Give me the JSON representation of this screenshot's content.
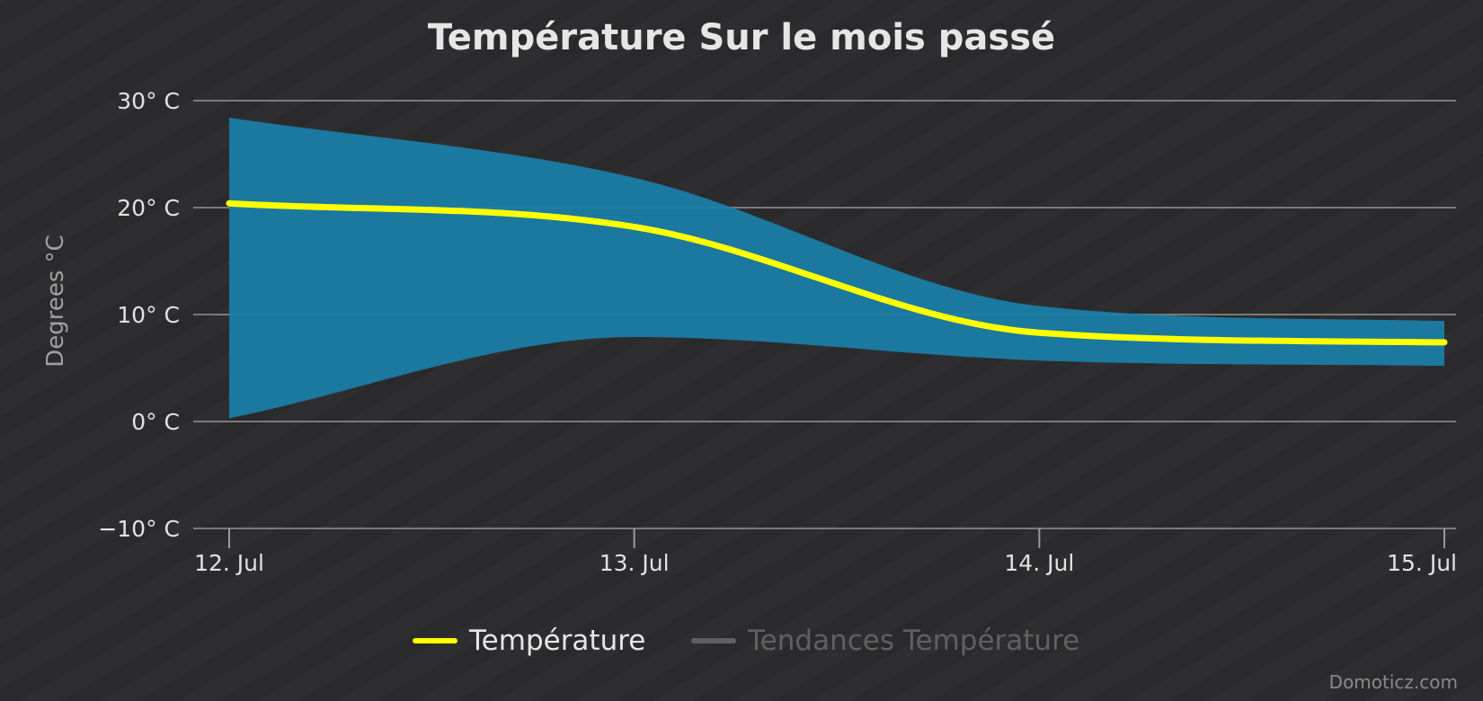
{
  "chart_data": {
    "type": "area",
    "title": "Température Sur le mois passé",
    "ylabel": "Degrees °C",
    "xlabel": "",
    "ylim": [
      -10,
      30
    ],
    "y_ticks": [
      {
        "value": 30,
        "label": "30° C"
      },
      {
        "value": 20,
        "label": "20° C"
      },
      {
        "value": 10,
        "label": "10° C"
      },
      {
        "value": 0,
        "label": "0° C"
      },
      {
        "value": -10,
        "label": "−10° C"
      }
    ],
    "x_ticks": [
      "12. Jul",
      "13. Jul",
      "14. Jul",
      "15. Jul"
    ],
    "x": [
      "12. Jul",
      "13. Jul",
      "14. Jul",
      "15. Jul"
    ],
    "series": [
      {
        "name": "Température",
        "kind": "line",
        "color": "#ffff00",
        "values": [
          20.4,
          18.2,
          8.3,
          7.4
        ]
      },
      {
        "name": "Température",
        "kind": "range",
        "color": "#1a7ea8",
        "low": [
          0.3,
          7.9,
          5.7,
          5.2
        ],
        "high": [
          28.4,
          22.8,
          10.8,
          9.4
        ]
      }
    ],
    "legend": {
      "placement": "bottom-center",
      "items": [
        {
          "label": "Température",
          "color": "#ffff00",
          "active": true
        },
        {
          "label": "Tendances Température",
          "color": "#606060",
          "active": false
        }
      ]
    },
    "grid": true,
    "credits": "Domoticz.com"
  }
}
